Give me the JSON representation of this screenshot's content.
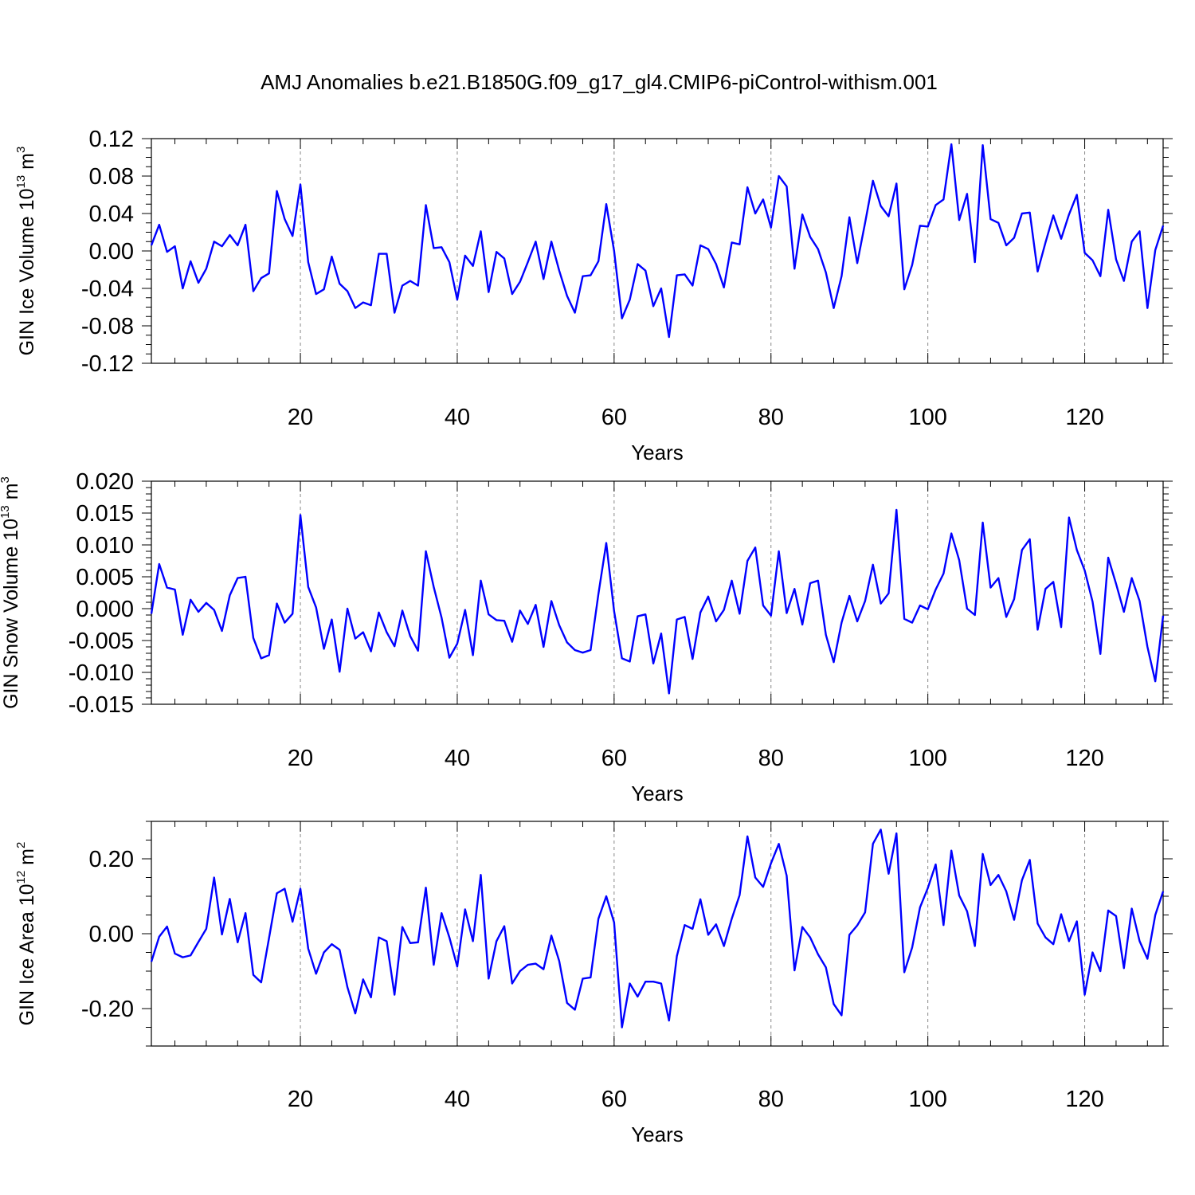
{
  "title": "AMJ Anomalies b.e21.B1850G.f09_g17_gl4.CMIP6-piControl-withism.001",
  "line_color": "#0000ff",
  "chart_data": [
    {
      "type": "line",
      "name": "ice-volume",
      "ylabel": "GIN Ice Volume 10",
      "ylabel_exp": "13",
      "ylabel_unit": " m",
      "ylabel_unit_exp": "3",
      "xlabel": "Years",
      "xlim": [
        1,
        130
      ],
      "ylim": [
        -0.12,
        0.12
      ],
      "yticks": [
        -0.12,
        -0.08,
        -0.04,
        0.0,
        0.04,
        0.08,
        0.12
      ],
      "ytick_labels": [
        "-0.12",
        "-0.08",
        "-0.04",
        "0.00",
        "0.04",
        "0.08",
        "0.12"
      ],
      "yminor_step": 0.01,
      "xticks": [
        20,
        40,
        60,
        80,
        100,
        120
      ],
      "xtick_labels": [
        "20",
        "40",
        "60",
        "80",
        "100",
        "120"
      ],
      "xminor_step": 4,
      "grid_x": true,
      "x_start": 1,
      "values": [
        0.006,
        0.028,
        -0.001,
        0.005,
        -0.04,
        -0.011,
        -0.034,
        -0.019,
        0.01,
        0.005,
        0.017,
        0.006,
        0.028,
        -0.043,
        -0.029,
        -0.024,
        0.064,
        0.034,
        0.016,
        0.071,
        -0.012,
        -0.046,
        -0.041,
        -0.006,
        -0.035,
        -0.043,
        -0.061,
        -0.055,
        -0.058,
        -0.003,
        -0.003,
        -0.066,
        -0.037,
        -0.032,
        -0.037,
        0.049,
        0.003,
        0.004,
        -0.012,
        -0.052,
        -0.005,
        -0.016,
        0.021,
        -0.044,
        -0.001,
        -0.008,
        -0.046,
        -0.033,
        -0.012,
        0.01,
        -0.03,
        0.01,
        -0.021,
        -0.048,
        -0.066,
        -0.027,
        -0.026,
        -0.011,
        0.05,
        0.0,
        -0.072,
        -0.052,
        -0.014,
        -0.021,
        -0.059,
        -0.04,
        -0.092,
        -0.026,
        -0.025,
        -0.037,
        0.006,
        0.002,
        -0.014,
        -0.039,
        0.009,
        0.007,
        0.068,
        0.04,
        0.055,
        0.025,
        0.08,
        0.069,
        -0.019,
        0.039,
        0.015,
        0.002,
        -0.023,
        -0.061,
        -0.027,
        0.036,
        -0.013,
        0.03,
        0.075,
        0.048,
        0.037,
        0.072,
        -0.041,
        -0.015,
        0.027,
        0.026,
        0.049,
        0.055,
        0.114,
        0.033,
        0.061,
        -0.012,
        0.113,
        0.034,
        0.03,
        0.006,
        0.014,
        0.04,
        0.041,
        -0.022,
        0.009,
        0.038,
        0.013,
        0.039,
        0.06,
        -0.002,
        -0.01,
        -0.027,
        0.044,
        -0.009,
        -0.032,
        0.01,
        0.021,
        -0.061,
        0.001,
        0.027
      ]
    },
    {
      "type": "line",
      "name": "snow-volume",
      "ylabel": "GIN Snow Volume 10",
      "ylabel_exp": "13",
      "ylabel_unit": " m",
      "ylabel_unit_exp": "3",
      "xlabel": "Years",
      "xlim": [
        1,
        130
      ],
      "ylim": [
        -0.015,
        0.02
      ],
      "yticks": [
        -0.015,
        -0.01,
        -0.005,
        0.0,
        0.005,
        0.01,
        0.015,
        0.02
      ],
      "ytick_labels": [
        "-0.015",
        "-0.010",
        "-0.005",
        "0.000",
        "0.005",
        "0.010",
        "0.015",
        "0.020"
      ],
      "yminor_step": 0.001,
      "xticks": [
        20,
        40,
        60,
        80,
        100,
        120
      ],
      "xtick_labels": [
        "20",
        "40",
        "60",
        "80",
        "100",
        "120"
      ],
      "xminor_step": 4,
      "grid_x": true,
      "x_start": 1,
      "values": [
        -0.0008,
        0.007,
        0.0033,
        0.003,
        -0.0041,
        0.0014,
        -0.0005,
        0.0009,
        -0.0002,
        -0.0035,
        0.0021,
        0.0048,
        0.005,
        -0.0046,
        -0.0078,
        -0.0073,
        0.0008,
        -0.0022,
        -0.0008,
        0.0147,
        0.0034,
        0.0002,
        -0.0063,
        -0.0017,
        -0.0099,
        0.0,
        -0.0047,
        -0.0037,
        -0.0067,
        -0.0006,
        -0.0037,
        -0.0059,
        -0.0003,
        -0.0043,
        -0.0066,
        0.009,
        0.0034,
        -0.0014,
        -0.0077,
        -0.0055,
        -0.0002,
        -0.0073,
        0.0044,
        -0.0009,
        -0.0018,
        -0.0019,
        -0.0052,
        -0.0003,
        -0.0024,
        0.0006,
        -0.006,
        0.0012,
        -0.0026,
        -0.0053,
        -0.0065,
        -0.0069,
        -0.0065,
        0.0023,
        0.0103,
        -0.0004,
        -0.0078,
        -0.0083,
        -0.0012,
        -0.0009,
        -0.0086,
        -0.0039,
        -0.0133,
        -0.0017,
        -0.0013,
        -0.0079,
        -0.0006,
        0.0019,
        -0.002,
        -0.0002,
        0.0044,
        -0.0008,
        0.0075,
        0.0096,
        0.0005,
        -0.0011,
        0.009,
        -0.0007,
        0.0031,
        -0.0025,
        0.004,
        0.0044,
        -0.0041,
        -0.0084,
        -0.0022,
        0.002,
        -0.002,
        0.0012,
        0.0069,
        0.0008,
        0.0024,
        0.0155,
        -0.0016,
        -0.0022,
        0.0005,
        -0.0001,
        0.003,
        0.0055,
        0.0118,
        0.0076,
        0.0,
        -0.001,
        0.0135,
        0.0033,
        0.0048,
        -0.0013,
        0.0015,
        0.0092,
        0.0109,
        -0.0033,
        0.0031,
        0.0042,
        -0.0029,
        0.0143,
        0.0092,
        0.006,
        0.0011,
        -0.0071,
        0.008,
        0.0039,
        -0.0005,
        0.0048,
        0.0012,
        -0.006,
        -0.0114,
        -0.0011
      ]
    },
    {
      "type": "line",
      "name": "ice-area",
      "ylabel": "GIN Ice Area 10",
      "ylabel_exp": "12",
      "ylabel_unit": " m",
      "ylabel_unit_exp": "2",
      "xlabel": "Years",
      "xlim": [
        1,
        130
      ],
      "ylim": [
        -0.3,
        0.3
      ],
      "yticks": [
        -0.2,
        0.0,
        0.2
      ],
      "ytick_labels": [
        "-0.20",
        "0.00",
        "0.20"
      ],
      "yminor_step": 0.05,
      "xticks": [
        20,
        40,
        60,
        80,
        100,
        120
      ],
      "xtick_labels": [
        "20",
        "40",
        "60",
        "80",
        "100",
        "120"
      ],
      "xminor_step": 4,
      "grid_x": true,
      "x_start": 1,
      "values": [
        -0.075,
        -0.008,
        0.019,
        -0.053,
        -0.063,
        -0.058,
        -0.022,
        0.013,
        0.15,
        -0.002,
        0.093,
        -0.023,
        0.055,
        -0.11,
        -0.13,
        -0.012,
        0.108,
        0.12,
        0.032,
        0.12,
        -0.04,
        -0.107,
        -0.05,
        -0.028,
        -0.043,
        -0.143,
        -0.213,
        -0.122,
        -0.17,
        -0.01,
        -0.02,
        -0.163,
        0.018,
        -0.025,
        -0.023,
        0.123,
        -0.083,
        0.055,
        -0.01,
        -0.088,
        0.065,
        -0.02,
        0.157,
        -0.12,
        -0.02,
        0.02,
        -0.133,
        -0.1,
        -0.083,
        -0.08,
        -0.095,
        -0.005,
        -0.073,
        -0.185,
        -0.203,
        -0.12,
        -0.117,
        0.04,
        0.1,
        0.03,
        -0.25,
        -0.133,
        -0.168,
        -0.128,
        -0.128,
        -0.133,
        -0.232,
        -0.06,
        0.023,
        0.013,
        0.092,
        -0.003,
        0.025,
        -0.033,
        0.04,
        0.103,
        0.26,
        0.15,
        0.125,
        0.188,
        0.24,
        0.155,
        -0.098,
        0.018,
        -0.01,
        -0.055,
        -0.09,
        -0.188,
        -0.218,
        -0.003,
        0.022,
        0.057,
        0.24,
        0.278,
        0.16,
        0.268,
        -0.103,
        -0.037,
        0.07,
        0.122,
        0.185,
        0.023,
        0.222,
        0.102,
        0.06,
        -0.033,
        0.213,
        0.13,
        0.157,
        0.113,
        0.037,
        0.143,
        0.197,
        0.027,
        -0.01,
        -0.028,
        0.052,
        -0.02,
        0.033,
        -0.163,
        -0.05,
        -0.1,
        0.062,
        0.047,
        -0.092,
        0.067,
        -0.02,
        -0.067,
        0.05,
        0.113
      ]
    }
  ]
}
